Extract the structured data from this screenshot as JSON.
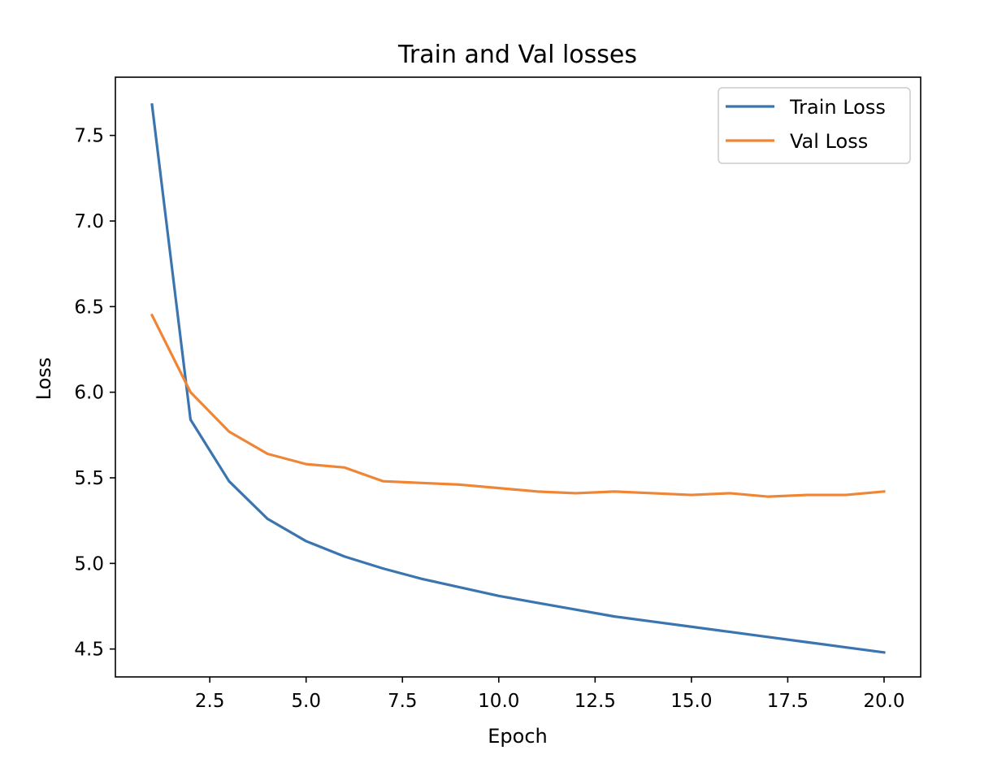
{
  "chart_data": {
    "type": "line",
    "title": "Train and Val losses",
    "xlabel": "Epoch",
    "ylabel": "Loss",
    "xlim": [
      0.05,
      20.95
    ],
    "ylim": [
      4.337,
      7.84
    ],
    "xticks": [
      2.5,
      5.0,
      7.5,
      10.0,
      12.5,
      15.0,
      17.5,
      20.0
    ],
    "xtick_labels": [
      "2.5",
      "5.0",
      "7.5",
      "10.0",
      "12.5",
      "15.0",
      "17.5",
      "20.0"
    ],
    "yticks": [
      4.5,
      5.0,
      5.5,
      6.0,
      6.5,
      7.0,
      7.5
    ],
    "ytick_labels": [
      "4.5",
      "5.0",
      "5.5",
      "6.0",
      "6.5",
      "7.0",
      "7.5"
    ],
    "grid": false,
    "legend_position": "top-right",
    "x": [
      1,
      2,
      3,
      4,
      5,
      6,
      7,
      8,
      9,
      10,
      11,
      12,
      13,
      14,
      15,
      16,
      17,
      18,
      19,
      20
    ],
    "series": [
      {
        "name": "Train Loss",
        "color": "#3b75af",
        "values": [
          7.68,
          5.84,
          5.48,
          5.26,
          5.13,
          5.04,
          4.97,
          4.91,
          4.86,
          4.81,
          4.77,
          4.73,
          4.69,
          4.66,
          4.63,
          4.6,
          4.57,
          4.54,
          4.51,
          4.48
        ]
      },
      {
        "name": "Val Loss",
        "color": "#ef8636",
        "values": [
          6.45,
          6.0,
          5.77,
          5.64,
          5.58,
          5.56,
          5.48,
          5.47,
          5.46,
          5.44,
          5.42,
          5.41,
          5.42,
          5.41,
          5.4,
          5.41,
          5.39,
          5.4,
          5.4,
          5.42
        ]
      }
    ]
  }
}
